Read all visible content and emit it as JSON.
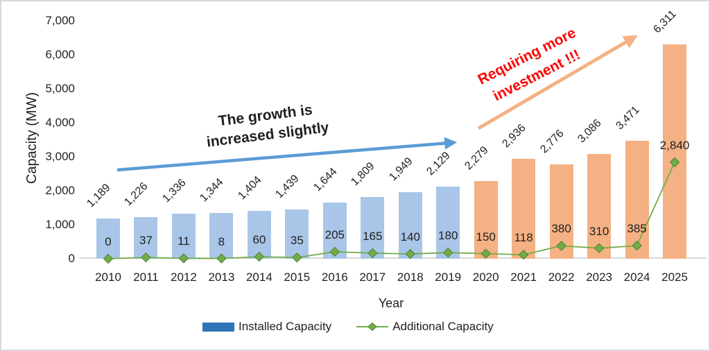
{
  "chart_data": {
    "type": "bar",
    "subtype": "combo bar + line",
    "categories": [
      "2010",
      "2011",
      "2012",
      "2013",
      "2014",
      "2015",
      "2016",
      "2017",
      "2018",
      "2019",
      "2020",
      "2021",
      "2022",
      "2023",
      "2024",
      "2025"
    ],
    "series": [
      {
        "name": "Installed Capacity",
        "type": "bar",
        "values": [
          1189,
          1226,
          1336,
          1344,
          1404,
          1439,
          1644,
          1809,
          1949,
          2129,
          2279,
          2936,
          2776,
          3086,
          3471,
          6311
        ],
        "data_labels": [
          "1,189",
          "1,226",
          "1,336",
          "1,344",
          "1,404",
          "1,439",
          "1,644",
          "1,809",
          "1,949",
          "2,129",
          "2,279",
          "2,936",
          "2,776",
          "3,086",
          "3,471",
          "6,311"
        ]
      },
      {
        "name": "Additional Capacity",
        "type": "line",
        "values": [
          0,
          37,
          11,
          8,
          60,
          35,
          205,
          165,
          140,
          180,
          150,
          118,
          380,
          310,
          385,
          2840
        ],
        "data_labels": [
          "0",
          "37",
          "11",
          "8",
          "60",
          "35",
          "205",
          "165",
          "140",
          "180",
          "150",
          "118",
          "380",
          "310",
          "385",
          "2,840"
        ]
      }
    ],
    "xlabel": "Year",
    "ylabel": "Capacity (MW)",
    "ylim": [
      0,
      7000
    ],
    "ytick_labels": [
      "0",
      "1,000",
      "2,000",
      "3,000",
      "4,000",
      "5,000",
      "6,000",
      "7,000"
    ],
    "grid": false,
    "legend_position": "bottom",
    "bar_split_index": 10
  },
  "annotations": {
    "growth": {
      "line1": "The growth is",
      "line2": "increased slightly"
    },
    "investment": {
      "line1": "Requiring more",
      "line2": "investment !!!"
    }
  },
  "styles": {
    "bar_early": "#A9C6E8",
    "bar_late": "#F4B183",
    "line_green": "#70AD47",
    "marker_edge": "#507E32",
    "legend_bar_blue": "#2E75B6",
    "arrow_blue": "#5B9BD5",
    "arrow_orange": "#F4B183",
    "annotation_red": "#FF0000",
    "ink": "#1f1f1f",
    "axis_line": "#D9D9D9"
  }
}
